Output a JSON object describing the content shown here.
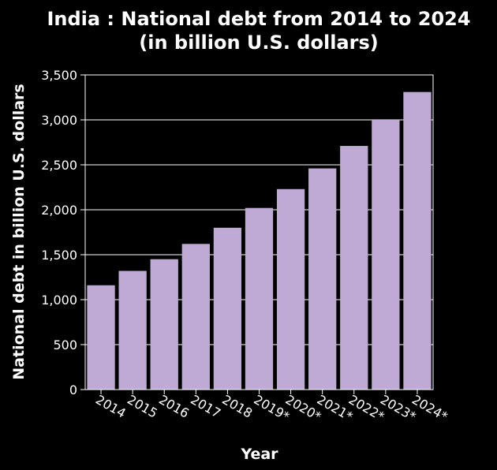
{
  "chart_data": {
    "type": "bar",
    "title_line1": "India : National debt from 2014 to 2024",
    "title_line2": "(in billion U.S. dollars)",
    "xlabel": "Year",
    "ylabel": "National debt in billion U.S. dollars",
    "categories": [
      "2014",
      "2015",
      "2016",
      "2017",
      "2018",
      "2019*",
      "2020*",
      "2021*",
      "2022*",
      "2023*",
      "2024*"
    ],
    "values": [
      1160,
      1320,
      1450,
      1620,
      1800,
      2020,
      2230,
      2460,
      2710,
      3000,
      3310
    ],
    "ylim": [
      0,
      3500
    ],
    "yticks": [
      0,
      500,
      1000,
      1500,
      2000,
      2500,
      3000,
      3500
    ],
    "ytick_labels": [
      "0",
      "500",
      "1,000",
      "1,500",
      "2,000",
      "2,500",
      "3,000",
      "3,500"
    ],
    "grid": "horizontal",
    "colors": {
      "background": "#000000",
      "bar": "#bfaad6",
      "grid": "#ffffff",
      "text": "#ffffff"
    }
  }
}
